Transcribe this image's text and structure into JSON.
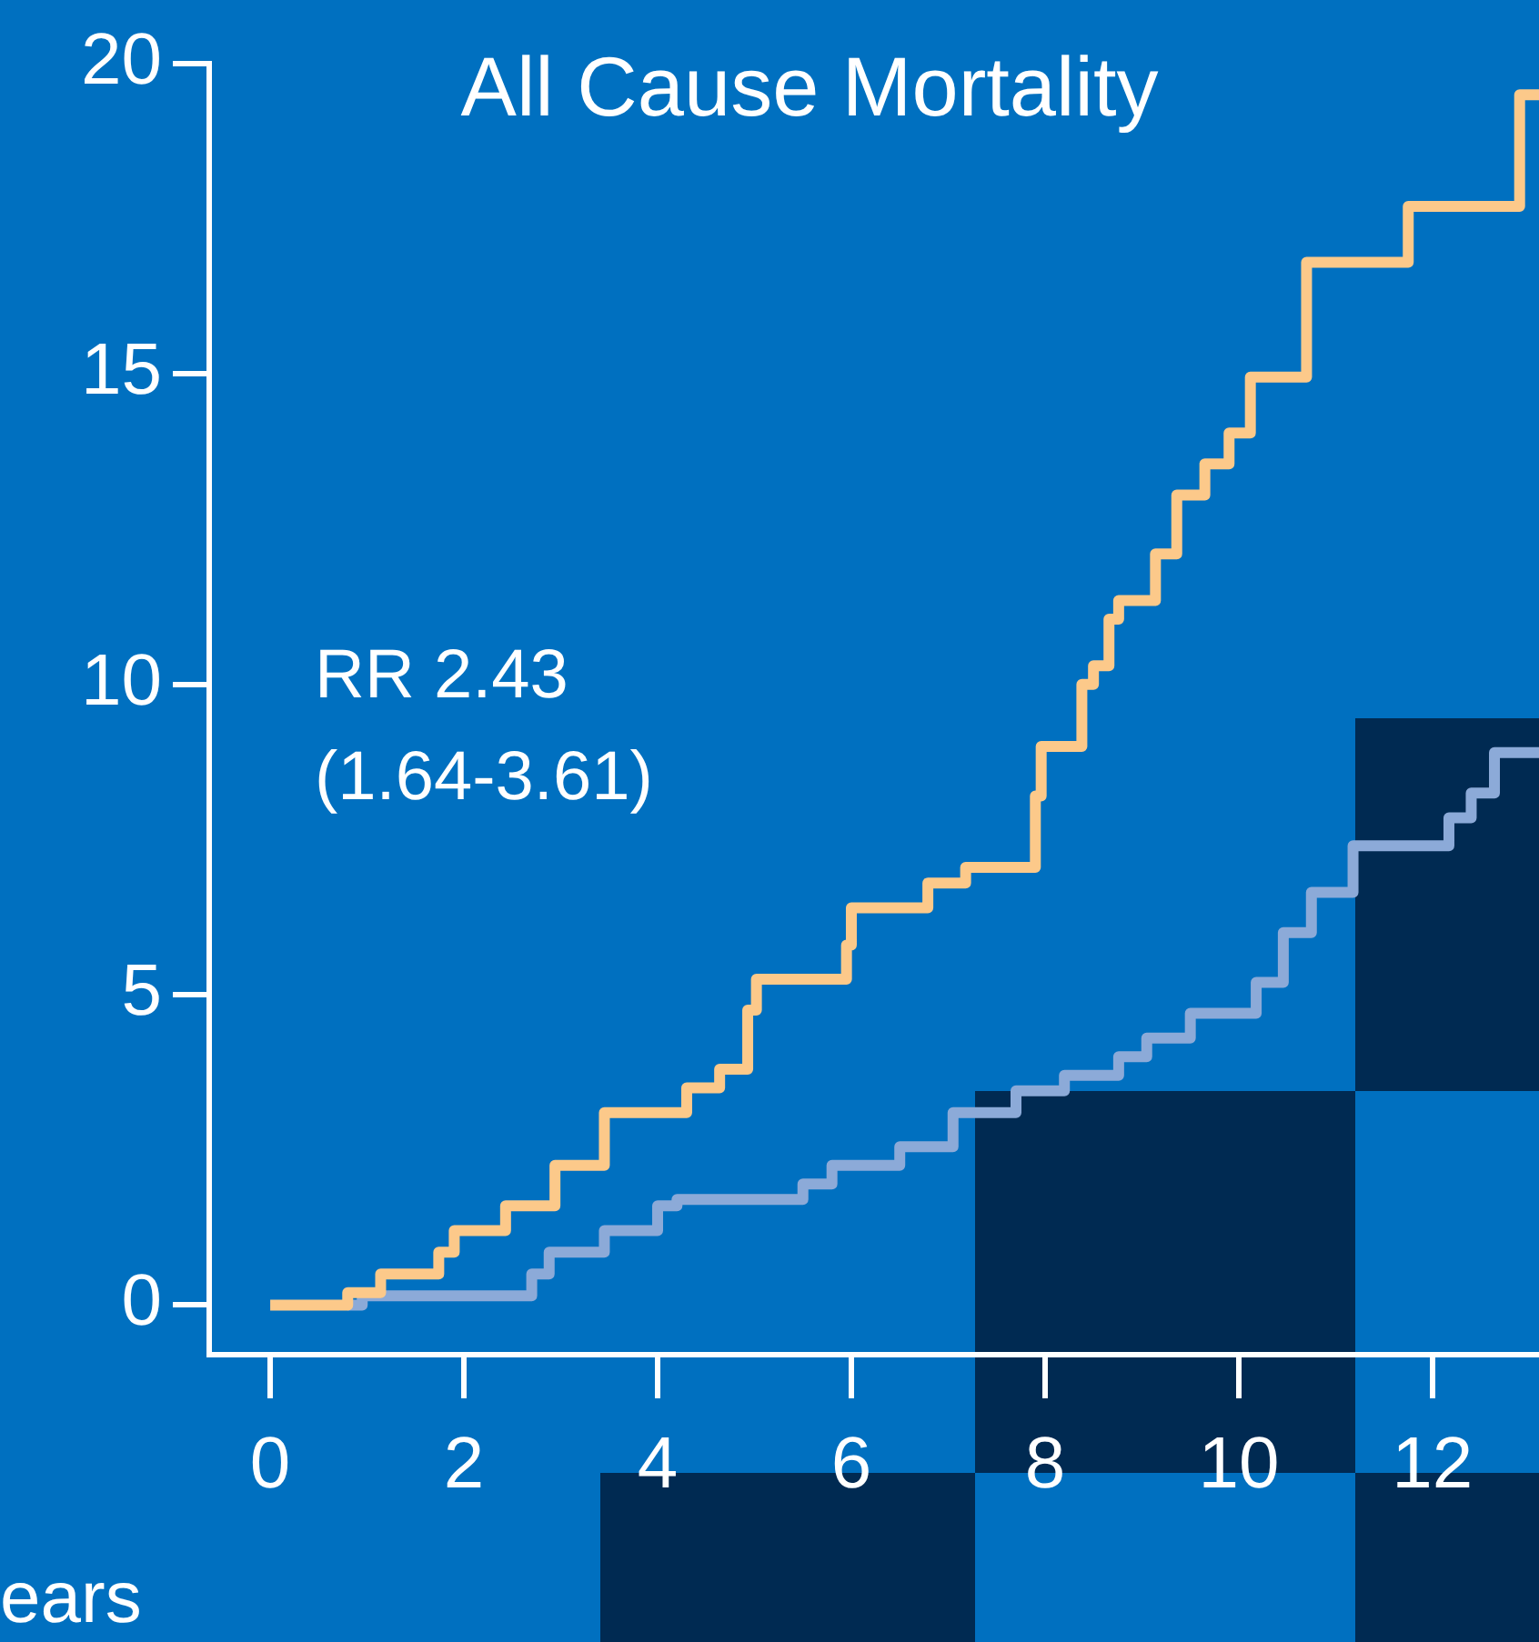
{
  "chart_data": {
    "type": "step",
    "title": "All Cause Mortality",
    "xlabel": "ears",
    "annotations": [
      "RR 2.43\n(1.64-3.61)"
    ],
    "xlim": [
      -0.63,
      13.1
    ],
    "xticks": [
      0,
      2,
      4,
      6,
      8,
      10,
      12
    ],
    "ylim": [
      -0.8,
      20
    ],
    "yticks": [
      0,
      5,
      10,
      15,
      20
    ],
    "legend": false,
    "marker": "none",
    "series": [
      {
        "color": "#fcc98a",
        "x": [
          0,
          0.8,
          1.14,
          1.74,
          1.9,
          2.43,
          2.94,
          3.45,
          4.3,
          4.64,
          4.93,
          5.02,
          5.95,
          6.0,
          6.79,
          7.18,
          7.9,
          7.96,
          8.38,
          8.5,
          8.66,
          8.76,
          9.14,
          9.36,
          9.65,
          9.9,
          10.12,
          10.7,
          11.75,
          12.9,
          13.1
        ],
        "values": [
          0,
          0.2,
          0.5,
          0.85,
          1.2,
          1.6,
          2.25,
          3.1,
          3.5,
          3.8,
          4.75,
          5.25,
          5.8,
          6.4,
          6.8,
          7.05,
          8.2,
          9.0,
          10.0,
          10.3,
          11.05,
          11.35,
          12.1,
          13.05,
          13.55,
          14.05,
          14.95,
          16.8,
          17.7,
          19.5,
          19.5
        ]
      },
      {
        "color": "#8caad8",
        "x": [
          0.8,
          0.95,
          2.7,
          2.88,
          3.45,
          4.0,
          4.2,
          5.5,
          5.8,
          6.5,
          7.05,
          7.7,
          8.2,
          8.76,
          9.05,
          9.5,
          10.18,
          10.46,
          10.75,
          11.18,
          12.17,
          12.4,
          12.64,
          13.1
        ],
        "values": [
          0,
          0.15,
          0.5,
          0.85,
          1.2,
          1.6,
          1.7,
          1.95,
          2.25,
          2.55,
          3.1,
          3.45,
          3.7,
          4.0,
          4.3,
          4.7,
          5.2,
          6.0,
          6.65,
          7.4,
          7.85,
          8.25,
          8.9,
          8.9
        ]
      }
    ]
  }
}
